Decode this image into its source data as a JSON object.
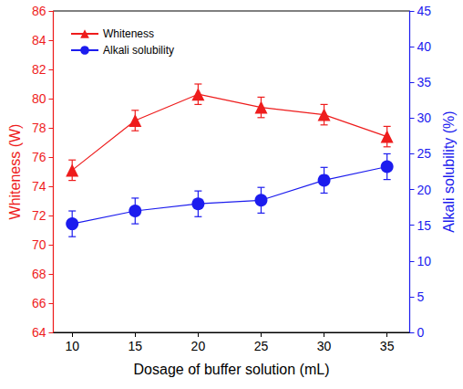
{
  "chart_data": {
    "type": "line",
    "x_label": "Dosage of buffer solution (mL)",
    "y_label": "Whiteness (W)",
    "y2_label": "Alkali solubility (%)",
    "x": [
      10,
      15,
      20,
      25,
      30,
      35
    ],
    "xlim": [
      8.5,
      36.8
    ],
    "xticks": [
      10,
      15,
      20,
      25,
      30,
      35
    ],
    "ylim": [
      64,
      86
    ],
    "yticks": [
      64,
      66,
      68,
      70,
      72,
      74,
      76,
      78,
      80,
      82,
      84,
      86
    ],
    "y2lim": [
      0,
      45
    ],
    "y2ticks": [
      0,
      5,
      10,
      15,
      20,
      25,
      30,
      35,
      40,
      45
    ],
    "grid": false,
    "legend": "upper left",
    "series": [
      {
        "name": "Whiteness",
        "color": "#ee1c1c",
        "marker": "triangle",
        "values": [
          75.1,
          78.5,
          80.3,
          79.4,
          78.9,
          77.4
        ],
        "errors": [
          0.7,
          0.7,
          0.7,
          0.7,
          0.7,
          0.7
        ]
      },
      {
        "name": "Alkali solubility",
        "color": "#1c1cee",
        "marker": "circle",
        "axis": "y2",
        "values": [
          15.2,
          17.0,
          18.0,
          18.5,
          21.3,
          23.2
        ],
        "errors": [
          1.8,
          1.8,
          1.8,
          1.8,
          1.8,
          1.8
        ]
      }
    ]
  }
}
